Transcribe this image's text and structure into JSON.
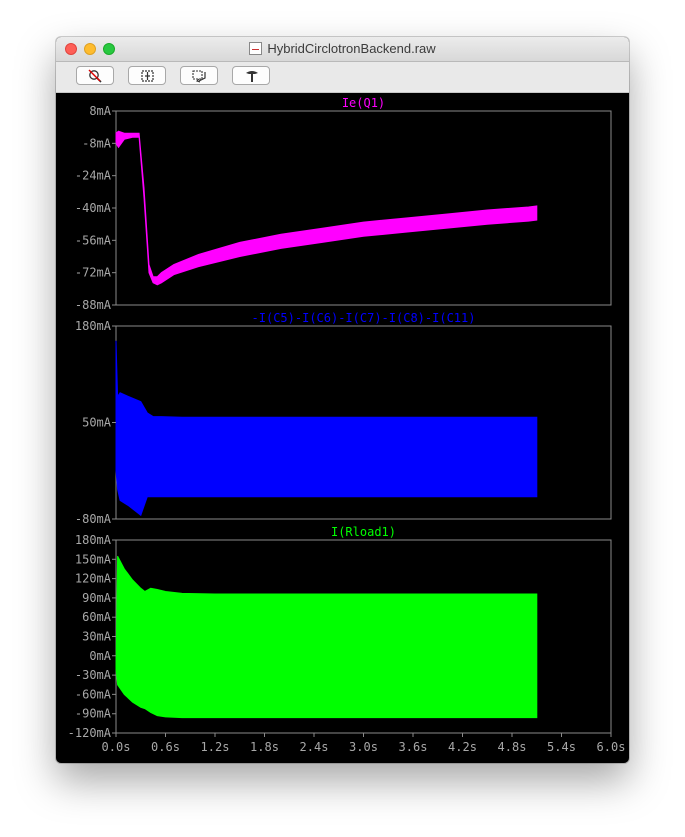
{
  "window": {
    "title": "HybridCirclotronBackend.raw"
  },
  "toolbar": {
    "buttons": [
      {
        "icon": "zoom-cancel-icon"
      },
      {
        "icon": "zoom-extents-icon"
      },
      {
        "icon": "zoom-back-icon"
      },
      {
        "icon": "tools-icon"
      }
    ]
  },
  "chart_data": [
    {
      "type": "line",
      "title": "Ie(Q1)",
      "color": "#ff00ff",
      "ylim": [
        -88,
        8
      ],
      "yticks": [
        8,
        -8,
        -24,
        -40,
        -56,
        -72,
        -88
      ],
      "ytick_labels": [
        "8mA",
        "-8mA",
        "-24mA",
        "-40mA",
        "-56mA",
        "-72mA",
        "-88mA"
      ],
      "envelope": {
        "x": [
          0.0,
          0.03,
          0.1,
          0.2,
          0.28,
          0.34,
          0.4,
          0.45,
          0.5,
          0.55,
          0.7,
          1.0,
          1.5,
          2.0,
          2.5,
          3.0,
          3.5,
          4.0,
          4.5,
          5.0,
          5.1
        ],
        "upper": [
          -3,
          -2,
          -3,
          -3,
          -3,
          -30,
          -68,
          -74,
          -74,
          -72,
          -68,
          -63,
          -57,
          -53,
          -50,
          -47,
          -45,
          -43,
          -41,
          -39.5,
          -39
        ],
        "lower": [
          -8,
          -10,
          -6,
          -5,
          -5,
          -35,
          -72,
          -77,
          -78,
          -77,
          -73,
          -69,
          -64,
          -60,
          -57,
          -54,
          -52,
          -50,
          -48,
          -46.5,
          -46
        ]
      }
    },
    {
      "type": "line",
      "title": "-I(C5)-I(C6)-I(C7)-I(C8)-I(C11)",
      "color": "#0000ff",
      "ylim": [
        -80,
        180
      ],
      "yticks": [
        180,
        50,
        -80
      ],
      "ytick_labels": [
        "180mA",
        "50mA",
        "-80mA"
      ],
      "envelope": {
        "x": [
          0.0,
          0.02,
          0.05,
          0.15,
          0.3,
          0.38,
          0.45,
          0.55,
          0.8,
          1.5,
          3.0,
          4.5,
          5.1
        ],
        "upper": [
          160,
          85,
          90,
          85,
          78,
          63,
          58,
          58,
          57,
          57,
          57,
          57,
          57
        ],
        "lower": [
          -15,
          -40,
          -55,
          -62,
          -75,
          -50,
          -50,
          -50,
          -50,
          -50,
          -50,
          -50,
          -50
        ]
      }
    },
    {
      "type": "line",
      "title": "I(Rload1)",
      "color": "#00ff00",
      "ylim": [
        -120,
        180
      ],
      "yticks": [
        180,
        150,
        120,
        90,
        60,
        30,
        0,
        -30,
        -60,
        -90,
        -120
      ],
      "ytick_labels": [
        "180mA",
        "150mA",
        "120mA",
        "90mA",
        "60mA",
        "30mA",
        "0mA",
        "-30mA",
        "-60mA",
        "-90mA",
        "-120mA"
      ],
      "xlim": [
        0.0,
        6.0
      ],
      "xticks": [
        0.0,
        0.6,
        1.2,
        1.8,
        2.4,
        3.0,
        3.6,
        4.2,
        4.8,
        5.4,
        6.0
      ],
      "xtick_labels": [
        "0.0s",
        "0.6s",
        "1.2s",
        "1.8s",
        "2.4s",
        "3.0s",
        "3.6s",
        "4.2s",
        "4.8s",
        "5.4s",
        "6.0s"
      ],
      "envelope": {
        "x": [
          0.0,
          0.02,
          0.1,
          0.2,
          0.3,
          0.35,
          0.42,
          0.5,
          0.6,
          0.8,
          1.2,
          2.0,
          3.0,
          4.0,
          5.1
        ],
        "upper": [
          -20,
          155,
          135,
          118,
          105,
          100,
          105,
          103,
          100,
          97,
          96,
          96,
          96,
          96,
          96
        ],
        "lower": [
          -20,
          -45,
          -60,
          -72,
          -80,
          -82,
          -88,
          -93,
          -95,
          -96,
          -96,
          -96,
          -96,
          -96,
          -96
        ]
      }
    }
  ]
}
